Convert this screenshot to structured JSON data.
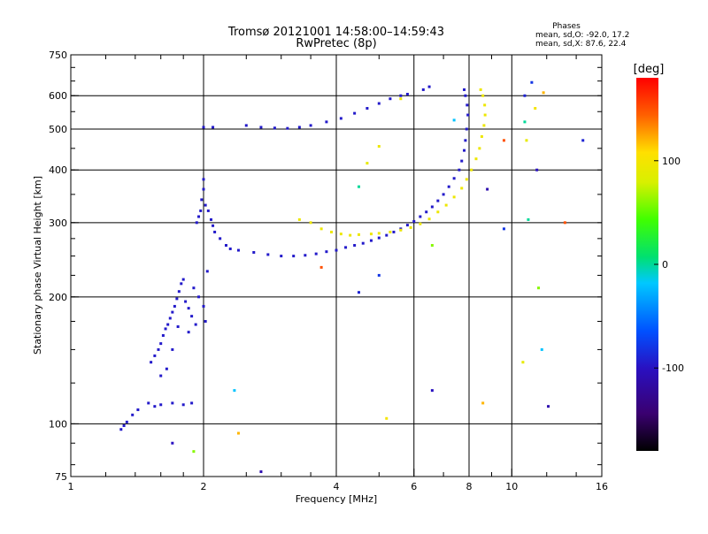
{
  "chart_data": {
    "type": "scatter",
    "title": "Tromsø 20121001 14:58:00–14:59:43",
    "subtitle": "RwPretec (8p)",
    "xlabel": "Frequency [MHz]",
    "ylabel": "Stationary phase Virtual Height [km]",
    "x_scale": "log",
    "y_scale": "log",
    "xlim": [
      1,
      16
    ],
    "ylim": [
      75,
      750
    ],
    "x_ticks": [
      1,
      2,
      4,
      6,
      8,
      10,
      16
    ],
    "y_ticks": [
      75,
      100,
      200,
      300,
      400,
      500,
      600,
      750
    ],
    "x_grid": [
      2,
      4,
      6,
      8,
      10
    ],
    "y_grid": [
      100,
      200,
      300,
      400,
      500,
      600
    ],
    "grid": true,
    "colorbar": {
      "label": "[deg]",
      "range": [
        -180,
        180
      ],
      "ticks": [
        100,
        0,
        -100
      ],
      "colormap": "rainbow"
    },
    "phase_stats": {
      "heading": "Phases",
      "o_line": "mean, sd,O: -92.0, 17.2",
      "x_line": "mean, sd,X:  87.6, 22.4"
    },
    "series": [
      {
        "trace": "O-mode",
        "points": [
          [
            1.3,
            97
          ],
          [
            1.32,
            99
          ],
          [
            1.34,
            101
          ],
          [
            1.38,
            105
          ],
          [
            1.42,
            108
          ],
          [
            1.5,
            112
          ],
          [
            1.55,
            110
          ],
          [
            1.6,
            111
          ],
          [
            1.7,
            112
          ],
          [
            1.8,
            111
          ],
          [
            1.88,
            112
          ],
          [
            1.52,
            140
          ],
          [
            1.55,
            145
          ],
          [
            1.58,
            150
          ],
          [
            1.6,
            155
          ],
          [
            1.62,
            162
          ],
          [
            1.64,
            168
          ],
          [
            1.66,
            172
          ],
          [
            1.68,
            178
          ],
          [
            1.7,
            184
          ],
          [
            1.72,
            190
          ],
          [
            1.74,
            198
          ],
          [
            1.76,
            206
          ],
          [
            1.78,
            215
          ],
          [
            1.8,
            220
          ],
          [
            1.82,
            195
          ],
          [
            1.85,
            188
          ],
          [
            1.88,
            180
          ],
          [
            1.9,
            210
          ],
          [
            1.95,
            200
          ],
          [
            2.0,
            190
          ],
          [
            2.02,
            175
          ],
          [
            2.04,
            230
          ],
          [
            1.6,
            130
          ],
          [
            1.65,
            135
          ],
          [
            1.7,
            150
          ],
          [
            1.75,
            170
          ],
          [
            1.85,
            165
          ],
          [
            1.92,
            172
          ],
          [
            1.93,
            300
          ],
          [
            1.95,
            310
          ],
          [
            1.97,
            320
          ],
          [
            1.98,
            340
          ],
          [
            2.0,
            360
          ],
          [
            2.0,
            380
          ],
          [
            2.02,
            330
          ],
          [
            2.05,
            320
          ],
          [
            2.08,
            305
          ],
          [
            2.1,
            295
          ],
          [
            2.12,
            285
          ],
          [
            2.18,
            275
          ],
          [
            2.25,
            265
          ],
          [
            2.3,
            260
          ],
          [
            2.4,
            258
          ],
          [
            2.6,
            255
          ],
          [
            2.8,
            252
          ],
          [
            3.0,
            250
          ],
          [
            3.2,
            250
          ],
          [
            3.4,
            251
          ],
          [
            3.6,
            253
          ],
          [
            3.8,
            256
          ],
          [
            4.0,
            258
          ],
          [
            4.2,
            262
          ],
          [
            4.4,
            265
          ],
          [
            4.6,
            268
          ],
          [
            4.8,
            272
          ],
          [
            5.0,
            276
          ],
          [
            5.2,
            280
          ],
          [
            5.4,
            285
          ],
          [
            5.6,
            290
          ],
          [
            5.8,
            296
          ],
          [
            6.0,
            302
          ],
          [
            6.2,
            310
          ],
          [
            6.4,
            318
          ],
          [
            6.6,
            327
          ],
          [
            6.8,
            338
          ],
          [
            7.0,
            350
          ],
          [
            7.2,
            365
          ],
          [
            7.4,
            382
          ],
          [
            7.6,
            400
          ],
          [
            7.7,
            420
          ],
          [
            7.8,
            445
          ],
          [
            7.85,
            470
          ],
          [
            7.9,
            500
          ],
          [
            7.95,
            540
          ],
          [
            7.92,
            570
          ],
          [
            7.85,
            600
          ],
          [
            7.8,
            620
          ],
          [
            2.0,
            505
          ],
          [
            2.1,
            505
          ],
          [
            2.5,
            510
          ],
          [
            2.7,
            505
          ],
          [
            2.9,
            503
          ],
          [
            3.1,
            502
          ],
          [
            3.3,
            505
          ],
          [
            3.5,
            510
          ],
          [
            3.8,
            520
          ],
          [
            4.1,
            530
          ],
          [
            4.4,
            545
          ],
          [
            4.7,
            560
          ],
          [
            5.0,
            575
          ],
          [
            5.3,
            590
          ],
          [
            5.6,
            600
          ],
          [
            5.8,
            605
          ],
          [
            6.3,
            620
          ],
          [
            6.5,
            630
          ]
        ],
        "phase_deg": -95
      },
      {
        "trace": "X-mode",
        "points": [
          [
            3.3,
            305
          ],
          [
            3.5,
            300
          ],
          [
            3.7,
            290
          ],
          [
            3.9,
            285
          ],
          [
            4.1,
            282
          ],
          [
            4.3,
            280
          ],
          [
            4.5,
            281
          ],
          [
            4.8,
            282
          ],
          [
            5.0,
            283
          ],
          [
            5.3,
            285
          ],
          [
            5.6,
            288
          ],
          [
            5.9,
            292
          ],
          [
            6.2,
            298
          ],
          [
            6.5,
            306
          ],
          [
            6.8,
            318
          ],
          [
            7.1,
            330
          ],
          [
            7.4,
            345
          ],
          [
            7.7,
            362
          ],
          [
            7.9,
            380
          ],
          [
            8.1,
            400
          ],
          [
            8.3,
            425
          ],
          [
            8.45,
            450
          ],
          [
            8.55,
            480
          ],
          [
            8.65,
            510
          ],
          [
            8.7,
            540
          ],
          [
            8.68,
            570
          ],
          [
            8.6,
            600
          ],
          [
            8.5,
            620
          ],
          [
            5.0,
            455
          ],
          [
            5.6,
            590
          ]
        ],
        "phase_deg": 95
      },
      {
        "trace": "noise",
        "points": [
          [
            1.7,
            90
          ],
          [
            1.9,
            86
          ],
          [
            2.35,
            120
          ],
          [
            2.4,
            95
          ],
          [
            2.7,
            77
          ],
          [
            3.7,
            235
          ],
          [
            4.5,
            205
          ],
          [
            4.7,
            415
          ],
          [
            4.5,
            365
          ],
          [
            5.0,
            225
          ],
          [
            5.2,
            103
          ],
          [
            6.6,
            120
          ],
          [
            6.6,
            265
          ],
          [
            7.4,
            525
          ],
          [
            8.6,
            112
          ],
          [
            8.8,
            360
          ],
          [
            9.6,
            470
          ],
          [
            10.7,
            600
          ],
          [
            10.8,
            470
          ],
          [
            10.9,
            305
          ],
          [
            11.1,
            645
          ],
          [
            11.3,
            560
          ],
          [
            11.4,
            400
          ],
          [
            11.5,
            210
          ],
          [
            11.7,
            150
          ],
          [
            11.8,
            610
          ],
          [
            12.1,
            110
          ],
          [
            13.2,
            300
          ],
          [
            14.5,
            470
          ],
          [
            10.6,
            140
          ],
          [
            10.7,
            520
          ],
          [
            9.6,
            290
          ]
        ],
        "phase_deg": [
          -100,
          60,
          -20,
          120,
          -110,
          150,
          -90,
          90,
          0,
          -80,
          100
        ]
      }
    ]
  }
}
